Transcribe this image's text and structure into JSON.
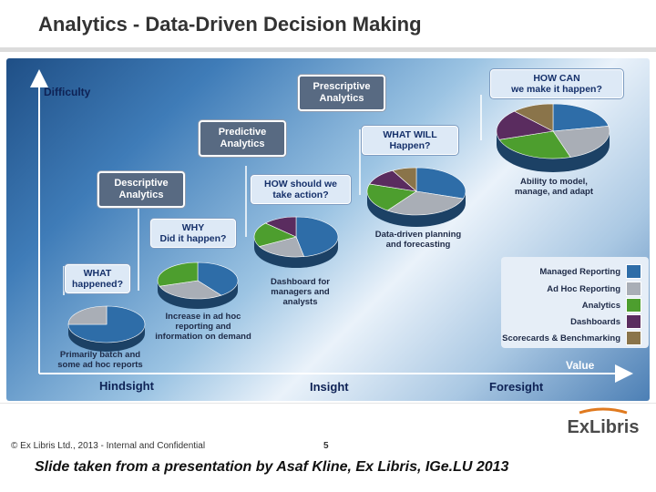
{
  "title": "Analytics - Data-Driven Decision Making",
  "y_axis": "Difficulty",
  "x_axis": {
    "labels": [
      "Hindsight",
      "Insight",
      "Foresight"
    ],
    "end_label": "Value"
  },
  "stage_boxes": [
    {
      "id": "descriptive",
      "text": "Descriptive\nAnalytics"
    },
    {
      "id": "predictive",
      "text": "Predictive\nAnalytics"
    },
    {
      "id": "prescriptive",
      "text": "Prescriptive\nAnalytics"
    }
  ],
  "question_boxes": [
    {
      "id": "what-happened",
      "text": "WHAT\nhappened?"
    },
    {
      "id": "why",
      "text": "WHY\nDid it happen?"
    },
    {
      "id": "how-should",
      "text": "HOW should we\ntake action?"
    },
    {
      "id": "what-will",
      "text": "WHAT WILL\nHappen?"
    },
    {
      "id": "how-can",
      "text": "HOW CAN\nwe make it happen?"
    }
  ],
  "captions": [
    {
      "id": "batch",
      "text": "Primarily batch and\nsome ad hoc reports"
    },
    {
      "id": "increase",
      "text": "Increase in ad hoc\nreporting and\ninformation on demand"
    },
    {
      "id": "dashboard",
      "text": "Dashboard for\nmanagers and\nanalysts"
    },
    {
      "id": "planning",
      "text": "Data-driven planning\nand forecasting"
    },
    {
      "id": "ability",
      "text": "Ability to model,\nmanage, and adapt"
    }
  ],
  "legend": [
    {
      "label": "Managed Reporting",
      "color": "#2e6da8"
    },
    {
      "label": "Ad Hoc Reporting",
      "color": "#a9aeb6"
    },
    {
      "label": "Analytics",
      "color": "#4d9e2e"
    },
    {
      "label": "Dashboards",
      "color": "#5a2c5f"
    },
    {
      "label": "Scorecards & Benchmarking",
      "color": "#8a744a"
    }
  ],
  "pies": [
    {
      "id": "pie-1",
      "shares": [
        0.75,
        0.25,
        0,
        0,
        0
      ]
    },
    {
      "id": "pie-2",
      "shares": [
        0.4,
        0.3,
        0.3,
        0,
        0
      ]
    },
    {
      "id": "pie-3",
      "shares": [
        0.47,
        0.2,
        0.2,
        0.13,
        0
      ]
    },
    {
      "id": "pie-4",
      "shares": [
        0.3,
        0.3,
        0.2,
        0.12,
        0.08
      ]
    },
    {
      "id": "pie-5",
      "shares": [
        0.22,
        0.23,
        0.25,
        0.18,
        0.12
      ]
    }
  ],
  "footer": {
    "text": "© Ex Libris Ltd., 2013  - Internal and Confidential",
    "page": "5"
  },
  "logo": "ExLibris",
  "source_note": "Slide taken from a presentation by Asaf Kline, Ex Libris, IGe.LU 2013"
}
